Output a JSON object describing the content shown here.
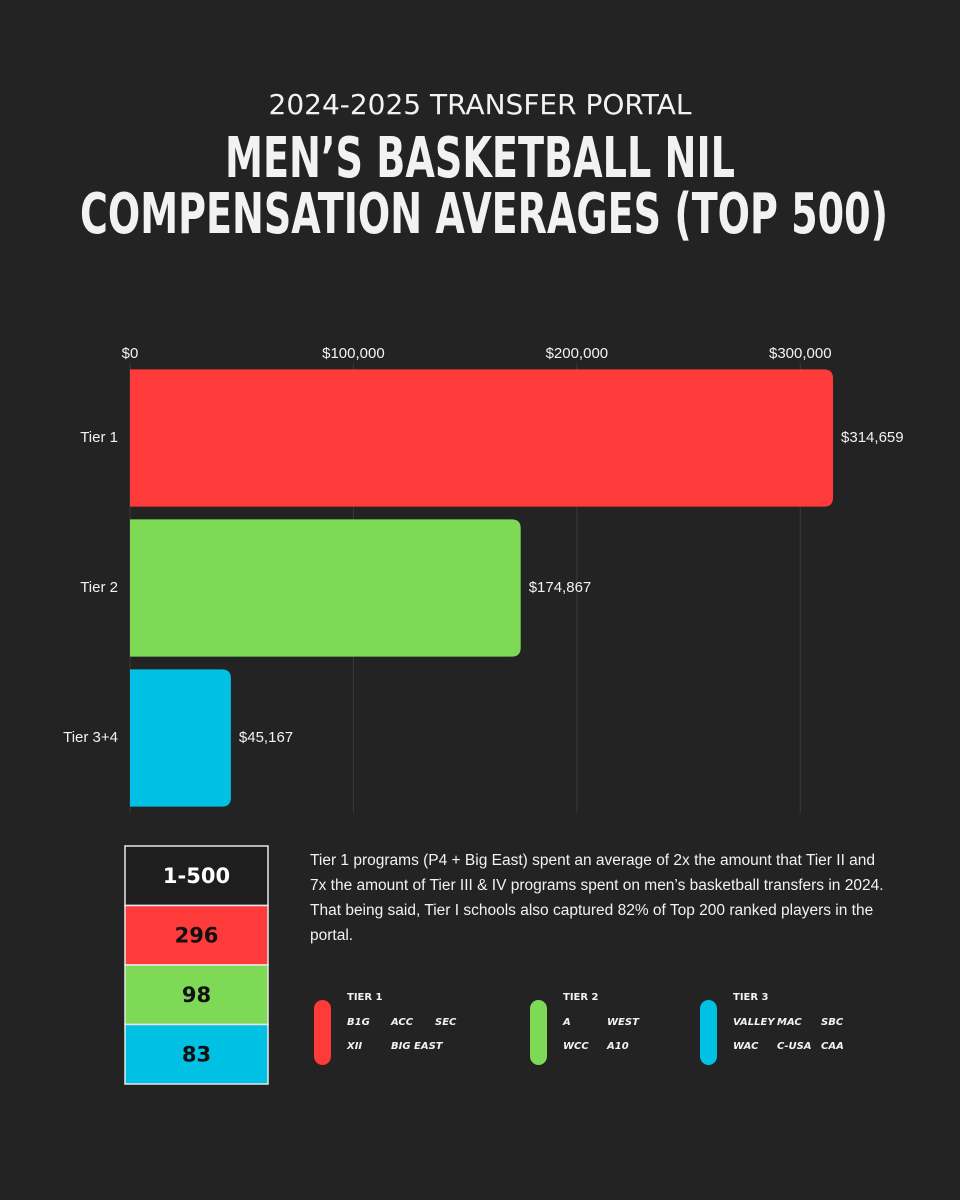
{
  "header": {
    "kicker": "2024-2025 TRANSFER PORTAL",
    "title_lines": [
      "MEN’S BASKETBALL NIL",
      "COMPENSATION AVERAGES (TOP 500)"
    ]
  },
  "chart_data": {
    "type": "bar",
    "orientation": "horizontal",
    "categories": [
      "Tier 1",
      "Tier 2",
      "Tier 3+4"
    ],
    "values": [
      314659,
      174867,
      45167
    ],
    "value_labels": [
      "$314,659",
      "$174,867",
      "$45,167"
    ],
    "colors": [
      "#ff3a3a",
      "#7ed957",
      "#00c0e3"
    ],
    "xlim": [
      0,
      350000
    ],
    "xticks": [
      {
        "value": 0,
        "label": "$0"
      },
      {
        "value": 100000,
        "label": "$100,000"
      },
      {
        "value": 200000,
        "label": "$200,000"
      },
      {
        "value": 300000,
        "label": "$300,000"
      }
    ],
    "grid": true
  },
  "table": {
    "rows": [
      {
        "label": "1-500",
        "color": "#1e1e1e"
      },
      {
        "label": "296",
        "color": "#ff3a3a"
      },
      {
        "label": "98",
        "color": "#7ed957"
      },
      {
        "label": "83",
        "color": "#00c0e3"
      }
    ]
  },
  "description": "Tier 1 programs (P4 + Big East) spent an average of 2x the amount that Tier II and 7x the amount of Tier III & IV programs  spent on men’s basketball transfers in 2024. That being said, Tier I schools also captured 82% of Top 200 ranked players in the portal.",
  "legend": {
    "groups": [
      {
        "label": "TIER 1",
        "color": "#ff3a3a",
        "logos": [
          "B1G",
          "ACC",
          "SEC",
          "XII",
          "BIG EAST"
        ]
      },
      {
        "label": "TIER 2",
        "color": "#7ed957",
        "logos": [
          "A",
          "WEST",
          "WCC",
          "A10"
        ]
      },
      {
        "label": "TIER 3",
        "color": "#00c0e3",
        "logos": [
          "VALLEY",
          "MAC",
          "SBC",
          "WAC",
          "C-USA",
          "CAA"
        ]
      }
    ]
  }
}
